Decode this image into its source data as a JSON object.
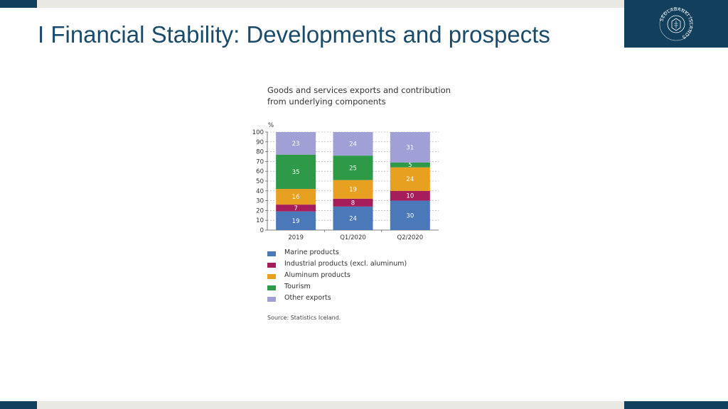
{
  "page": {
    "title": "I Financial Stability: Developments and prospects"
  },
  "logo": {
    "text": "SEÐLABANKI ÍSLANDS"
  },
  "chart_data": {
    "type": "bar",
    "stacked": true,
    "title_lines": [
      "Goods and services exports and contribution",
      "from underlying components"
    ],
    "ylabel": "%",
    "ylim": [
      0,
      100
    ],
    "yticks": [
      0,
      10,
      20,
      30,
      40,
      50,
      60,
      70,
      80,
      90,
      100
    ],
    "categories": [
      "2019",
      "Q1/2020",
      "Q2/2020"
    ],
    "series": [
      {
        "name": "Marine products",
        "color": "#4a78b8",
        "values": [
          19,
          24,
          30
        ]
      },
      {
        "name": "Industrial products (excl. aluminum)",
        "color": "#a51d5a",
        "values": [
          7,
          8,
          10
        ]
      },
      {
        "name": "Aluminum products",
        "color": "#e8a020",
        "values": [
          16,
          19,
          24
        ]
      },
      {
        "name": "Tourism",
        "color": "#2e9a48",
        "values": [
          35,
          25,
          5
        ]
      },
      {
        "name": "Other exports",
        "color": "#a09fd6",
        "values": [
          23,
          24,
          31
        ]
      }
    ],
    "grid": true,
    "source": "Source: Statistics Iceland."
  }
}
